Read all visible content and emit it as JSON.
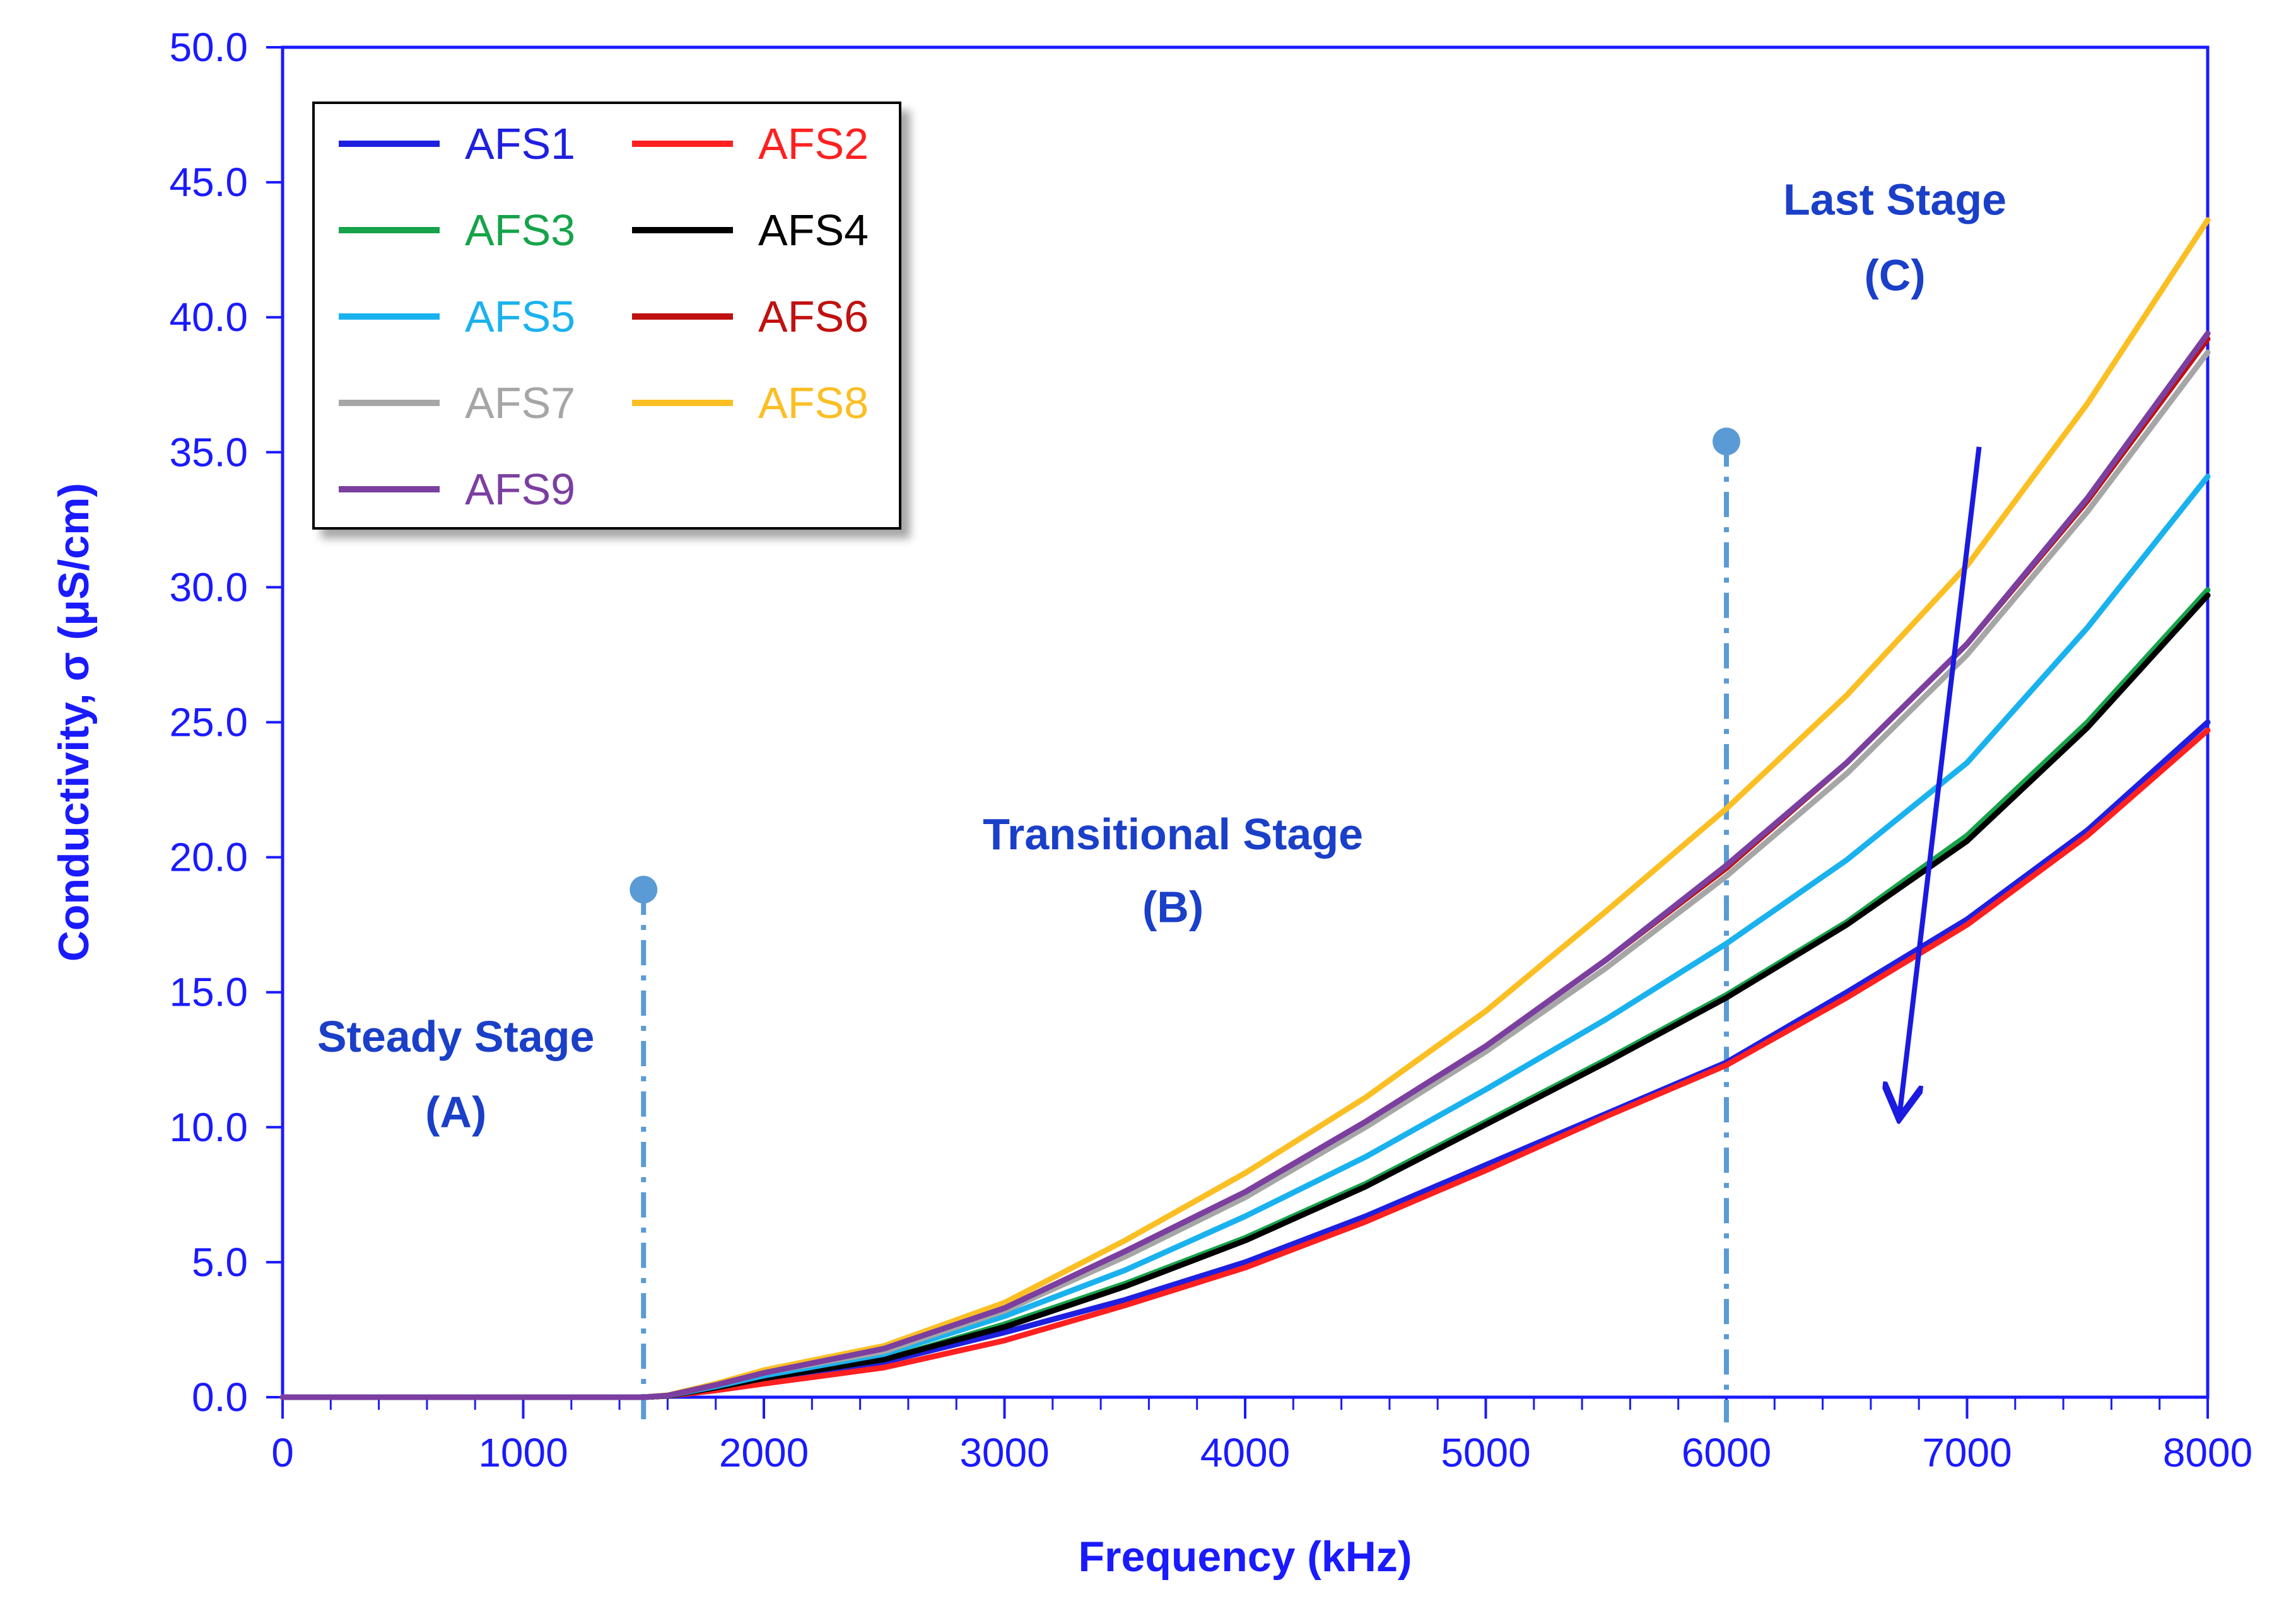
{
  "chart_data": {
    "type": "line",
    "xlabel": "Frequency (kHz)",
    "ylabel": "Conductivity, σ (μS/cm)",
    "xlim": [
      0,
      8000
    ],
    "ylim": [
      0,
      50
    ],
    "x_ticks": [
      "0",
      "1000",
      "2000",
      "3000",
      "4000",
      "5000",
      "6000",
      "7000",
      "8000"
    ],
    "y_ticks": [
      "0.0",
      "5.0",
      "10.0",
      "15.0",
      "20.0",
      "25.0",
      "30.0",
      "35.0",
      "40.0",
      "45.0",
      "50.0"
    ],
    "x_minor_step": 200,
    "grid": false,
    "legend_position": "top-left",
    "x": [
      0,
      1500,
      1600,
      1800,
      2000,
      2500,
      3000,
      3500,
      4000,
      4500,
      5000,
      5500,
      6000,
      6500,
      7000,
      7500,
      8000
    ],
    "series": [
      {
        "name": "AFS1",
        "color": "#1f1fe0",
        "values": [
          0,
          0,
          0.05,
          0.3,
          0.6,
          1.3,
          2.4,
          3.6,
          5.0,
          6.7,
          8.6,
          10.5,
          12.4,
          15.0,
          17.7,
          21.0,
          25.0
        ]
      },
      {
        "name": "AFS2",
        "color": "#ff2020",
        "values": [
          0,
          0,
          0.05,
          0.25,
          0.5,
          1.1,
          2.1,
          3.4,
          4.8,
          6.5,
          8.4,
          10.4,
          12.3,
          14.8,
          17.5,
          20.8,
          24.7
        ]
      },
      {
        "name": "AFS3",
        "color": "#16a34a",
        "values": [
          0,
          0,
          0.05,
          0.35,
          0.7,
          1.4,
          2.7,
          4.2,
          5.9,
          7.9,
          10.2,
          12.5,
          14.9,
          17.6,
          20.8,
          25.0,
          29.9
        ]
      },
      {
        "name": "AFS4",
        "color": "#000000",
        "values": [
          0,
          0,
          0.05,
          0.35,
          0.7,
          1.4,
          2.6,
          4.1,
          5.8,
          7.8,
          10.1,
          12.4,
          14.8,
          17.5,
          20.6,
          24.8,
          29.7
        ]
      },
      {
        "name": "AFS5",
        "color": "#1ab2ee",
        "values": [
          0,
          0,
          0.06,
          0.4,
          0.8,
          1.6,
          3.0,
          4.7,
          6.7,
          8.9,
          11.4,
          14.0,
          16.8,
          19.9,
          23.5,
          28.5,
          34.1
        ]
      },
      {
        "name": "AFS6",
        "color": "#c01010",
        "values": [
          0,
          0,
          0.06,
          0.45,
          0.9,
          1.8,
          3.3,
          5.4,
          7.6,
          10.2,
          13.0,
          16.2,
          19.6,
          23.5,
          27.9,
          33.2,
          39.2
        ]
      },
      {
        "name": "AFS7",
        "color": "#a6a6a6",
        "values": [
          0,
          0,
          0.06,
          0.45,
          0.9,
          1.7,
          3.2,
          5.2,
          7.4,
          10.0,
          12.8,
          15.9,
          19.3,
          23.1,
          27.5,
          32.8,
          38.7
        ]
      },
      {
        "name": "AFS8",
        "color": "#fbbf24",
        "values": [
          0,
          0,
          0.07,
          0.5,
          1.0,
          1.9,
          3.5,
          5.8,
          8.3,
          11.1,
          14.3,
          18.0,
          21.8,
          26.0,
          30.8,
          36.8,
          43.6
        ]
      },
      {
        "name": "AFS9",
        "color": "#7b3fa0",
        "values": [
          0,
          0,
          0.06,
          0.45,
          0.9,
          1.8,
          3.3,
          5.4,
          7.6,
          10.2,
          13.0,
          16.2,
          19.7,
          23.5,
          27.9,
          33.3,
          39.4
        ]
      }
    ],
    "stage_markers": [
      {
        "x": 1500,
        "top": 18.8
      },
      {
        "x": 6000,
        "top": 35.4
      }
    ],
    "marker_color": "#5b9bd5",
    "annotations": [
      {
        "line1": "Steady Stage",
        "line2": "(A)",
        "x": 720,
        "y1": 12.8,
        "y2": 10.0
      },
      {
        "line1": "Transitional Stage",
        "line2": "(B)",
        "x": 3700,
        "y1": 20.3,
        "y2": 17.6
      },
      {
        "line1": "Last Stage",
        "line2": "(C)",
        "x": 6700,
        "y1": 43.8,
        "y2": 41.0
      }
    ],
    "trend_arrow": {
      "from": [
        7050,
        35.2
      ],
      "to": [
        6720,
        10.5
      ],
      "color": "#1a1ae0"
    }
  }
}
